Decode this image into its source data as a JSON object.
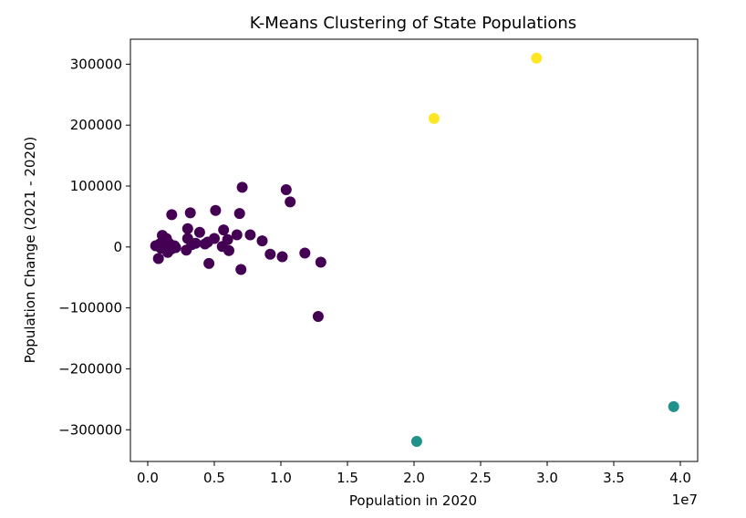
{
  "chart_data": {
    "type": "scatter",
    "title": "K-Means Clustering of State Populations",
    "xlabel": "Population in 2020",
    "ylabel": "Population Change (2021 - 2020)",
    "x_offset_label": "1e7",
    "xlim": [
      -1300000,
      41300000
    ],
    "ylim": [
      -352000,
      341000
    ],
    "x_ticks": [
      0,
      5000000,
      10000000,
      15000000,
      20000000,
      25000000,
      30000000,
      35000000,
      40000000
    ],
    "x_tick_labels": [
      "0.0",
      "0.5",
      "1.0",
      "1.5",
      "2.0",
      "2.5",
      "3.0",
      "3.5",
      "4.0"
    ],
    "y_ticks": [
      -300000,
      -200000,
      -100000,
      0,
      100000,
      200000,
      300000
    ],
    "y_tick_labels": [
      "−300000",
      "−200000",
      "−100000",
      "0",
      "100000",
      "200000",
      "300000"
    ],
    "cluster_colors": [
      "#440154",
      "#21918c",
      "#fde725"
    ],
    "points": [
      {
        "x": 600000,
        "y": 2000,
        "c": 0
      },
      {
        "x": 800000,
        "y": -19000,
        "c": 0
      },
      {
        "x": 900000,
        "y": 5000,
        "c": 0
      },
      {
        "x": 1000000,
        "y": -2000,
        "c": 0
      },
      {
        "x": 1100000,
        "y": 19000,
        "c": 0
      },
      {
        "x": 1200000,
        "y": 8000,
        "c": 0
      },
      {
        "x": 1300000,
        "y": 3000,
        "c": 0
      },
      {
        "x": 1400000,
        "y": 14000,
        "c": 0
      },
      {
        "x": 1500000,
        "y": -9000,
        "c": 0
      },
      {
        "x": 1600000,
        "y": 6000,
        "c": 0
      },
      {
        "x": 1800000,
        "y": -3000,
        "c": 0
      },
      {
        "x": 1800000,
        "y": 53000,
        "c": 0
      },
      {
        "x": 2000000,
        "y": 2000,
        "c": 0
      },
      {
        "x": 2100000,
        "y": -1000,
        "c": 0
      },
      {
        "x": 2900000,
        "y": -5000,
        "c": 0
      },
      {
        "x": 3000000,
        "y": 14000,
        "c": 0
      },
      {
        "x": 3000000,
        "y": 30000,
        "c": 0
      },
      {
        "x": 3200000,
        "y": 56000,
        "c": 0
      },
      {
        "x": 3300000,
        "y": 4000,
        "c": 0
      },
      {
        "x": 3600000,
        "y": 6000,
        "c": 0
      },
      {
        "x": 3900000,
        "y": 24000,
        "c": 0
      },
      {
        "x": 4300000,
        "y": 5000,
        "c": 0
      },
      {
        "x": 4500000,
        "y": 8000,
        "c": 0
      },
      {
        "x": 4600000,
        "y": -27000,
        "c": 0
      },
      {
        "x": 5000000,
        "y": 14000,
        "c": 0
      },
      {
        "x": 5100000,
        "y": 60000,
        "c": 0
      },
      {
        "x": 5600000,
        "y": 1000,
        "c": 0
      },
      {
        "x": 5700000,
        "y": 28000,
        "c": 0
      },
      {
        "x": 6000000,
        "y": 12000,
        "c": 0
      },
      {
        "x": 6100000,
        "y": -6000,
        "c": 0
      },
      {
        "x": 6700000,
        "y": 20000,
        "c": 0
      },
      {
        "x": 6900000,
        "y": 55000,
        "c": 0
      },
      {
        "x": 7000000,
        "y": -37000,
        "c": 0
      },
      {
        "x": 7100000,
        "y": 98000,
        "c": 0
      },
      {
        "x": 7700000,
        "y": 20000,
        "c": 0
      },
      {
        "x": 8600000,
        "y": 10000,
        "c": 0
      },
      {
        "x": 9200000,
        "y": -12000,
        "c": 0
      },
      {
        "x": 10100000,
        "y": -16000,
        "c": 0
      },
      {
        "x": 10400000,
        "y": 94000,
        "c": 0
      },
      {
        "x": 10700000,
        "y": 74000,
        "c": 0
      },
      {
        "x": 11800000,
        "y": -10000,
        "c": 0
      },
      {
        "x": 12800000,
        "y": -114000,
        "c": 0
      },
      {
        "x": 13000000,
        "y": -25000,
        "c": 0
      },
      {
        "x": 20200000,
        "y": -319000,
        "c": 1
      },
      {
        "x": 39500000,
        "y": -262000,
        "c": 1
      },
      {
        "x": 21500000,
        "y": 211000,
        "c": 2
      },
      {
        "x": 29200000,
        "y": 310000,
        "c": 2
      }
    ]
  }
}
